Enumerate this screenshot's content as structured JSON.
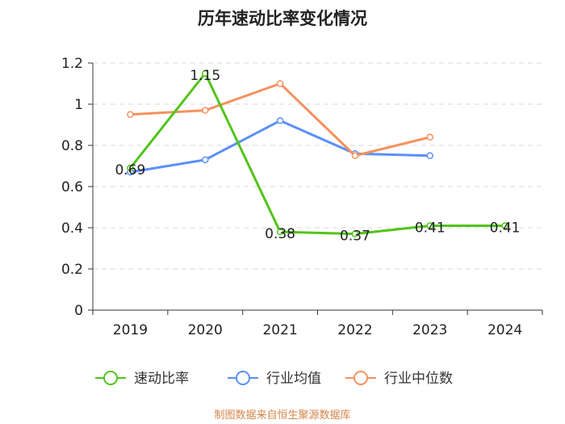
{
  "chart_data": {
    "type": "line",
    "title": "历年速动比率变化情况",
    "categories": [
      "2019",
      "2020",
      "2021",
      "2022",
      "2023",
      "2024"
    ],
    "y_ticks": [
      "0",
      "0.2",
      "0.4",
      "0.6",
      "0.8",
      "1",
      "1.2"
    ],
    "ylim": [
      0,
      1.2
    ],
    "grid": true,
    "legend_position": "bottom",
    "series": [
      {
        "name": "速动比率",
        "color": "#52c41a",
        "values": [
          0.69,
          1.15,
          0.38,
          0.37,
          0.41,
          0.41
        ],
        "labels": [
          "0.69",
          "1.15",
          "0.38",
          "0.37",
          "0.41",
          "0.41"
        ]
      },
      {
        "name": "行业均值",
        "color": "#5b8ff9",
        "values": [
          0.67,
          0.73,
          0.92,
          0.76,
          0.75,
          null
        ]
      },
      {
        "name": "行业中位数",
        "color": "#f6915e",
        "values": [
          0.95,
          0.97,
          1.1,
          0.75,
          0.84,
          null
        ]
      }
    ],
    "source": "制图数据来自恒生聚源数据库"
  }
}
